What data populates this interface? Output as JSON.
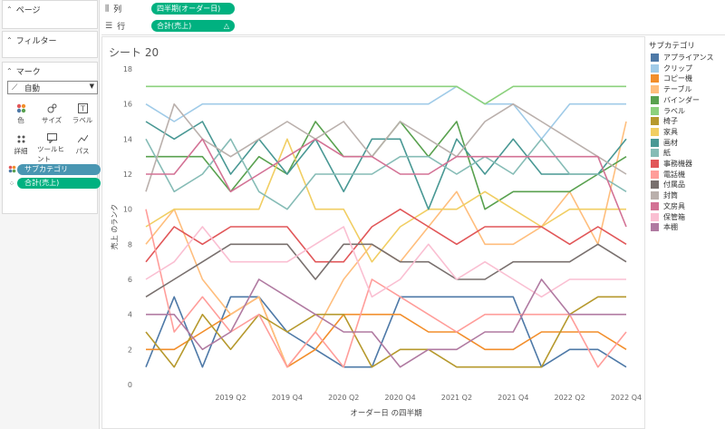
{
  "left_pane": {
    "pages_label": "ページ",
    "filters_label": "フィルター",
    "marks_label": "マーク",
    "mark_type": "自動",
    "buttons": [
      {
        "label": "色",
        "icon": "color-dots-icon"
      },
      {
        "label": "サイズ",
        "icon": "size-icon"
      },
      {
        "label": "ラベル",
        "icon": "label-T-icon"
      },
      {
        "label": "詳細",
        "icon": "detail-icon"
      },
      {
        "label": "ツールヒント",
        "icon": "tooltip-icon"
      },
      {
        "label": "パス",
        "icon": "path-icon"
      }
    ],
    "color_pill": "サブカテゴリ",
    "detail_pill": "合計(売上)"
  },
  "shelves": {
    "columns_label": "列",
    "columns_pill": "四半期(オーダー日)",
    "rows_label": "行",
    "rows_pill": "合計(売上)"
  },
  "sheet": {
    "title": "シート 20"
  },
  "legend": {
    "title": "サブカテゴリ",
    "items": [
      {
        "name": "アプライアンス",
        "color": "#4e79a7"
      },
      {
        "name": "クリップ",
        "color": "#a0cbe8"
      },
      {
        "name": "コピー機",
        "color": "#f28e2b"
      },
      {
        "name": "テーブル",
        "color": "#ffbe7d"
      },
      {
        "name": "バインダー",
        "color": "#59a14f"
      },
      {
        "name": "ラベル",
        "color": "#8cd17d"
      },
      {
        "name": "椅子",
        "color": "#b6992d"
      },
      {
        "name": "家具",
        "color": "#f1ce63"
      },
      {
        "name": "画材",
        "color": "#499894"
      },
      {
        "name": "紙",
        "color": "#86bcb6"
      },
      {
        "name": "事務機器",
        "color": "#e15759"
      },
      {
        "name": "電話機",
        "color": "#ff9d9a"
      },
      {
        "name": "付属品",
        "color": "#79706e"
      },
      {
        "name": "封筒",
        "color": "#bab0ac"
      },
      {
        "name": "文房具",
        "color": "#d37295"
      },
      {
        "name": "保管箱",
        "color": "#fabfd2"
      },
      {
        "name": "本棚",
        "color": "#b07aa1"
      }
    ]
  },
  "chart_data": {
    "type": "line",
    "xlabel": "オーダー日 の四半期",
    "ylabel": "売上 のランク",
    "ylim": [
      0,
      18
    ],
    "yticks": [
      0,
      2,
      4,
      6,
      8,
      10,
      12,
      14,
      16,
      18
    ],
    "x": [
      "2018 Q3",
      "2018 Q4",
      "2019 Q1",
      "2019 Q2",
      "2019 Q3",
      "2019 Q4",
      "2020 Q1",
      "2020 Q2",
      "2020 Q3",
      "2020 Q4",
      "2021 Q1",
      "2021 Q2",
      "2021 Q3",
      "2021 Q4",
      "2022 Q1",
      "2022 Q2",
      "2022 Q3",
      "2022 Q4"
    ],
    "xtick_labels": [
      "",
      "",
      "",
      "2019 Q2",
      "",
      "2019 Q4",
      "",
      "2020 Q2",
      "",
      "2020 Q4",
      "",
      "2021 Q2",
      "",
      "2021 Q4",
      "",
      "2022 Q2",
      "",
      "2022 Q4"
    ],
    "series": [
      {
        "name": "アプライアンス",
        "color": "#4e79a7",
        "values": [
          1,
          5,
          1,
          5,
          5,
          3,
          2,
          1,
          1,
          5,
          5,
          5,
          5,
          5,
          1,
          2,
          2,
          1
        ]
      },
      {
        "name": "クリップ",
        "color": "#a0cbe8",
        "values": [
          16,
          15,
          16,
          16,
          16,
          16,
          16,
          16,
          16,
          16,
          16,
          17,
          16,
          16,
          14,
          16,
          16,
          16
        ]
      },
      {
        "name": "コピー機",
        "color": "#f28e2b",
        "values": [
          2,
          2,
          3,
          4,
          5,
          1,
          2,
          4,
          4,
          4,
          3,
          3,
          2,
          2,
          3,
          3,
          3,
          2
        ]
      },
      {
        "name": "テーブル",
        "color": "#ffbe7d",
        "values": [
          8,
          10,
          6,
          4,
          5,
          1,
          3,
          6,
          8,
          7,
          9,
          11,
          8,
          8,
          9,
          11,
          8,
          15
        ]
      },
      {
        "name": "バインダー",
        "color": "#59a14f",
        "values": [
          13,
          13,
          13,
          11,
          13,
          12,
          15,
          13,
          13,
          15,
          13,
          15,
          10,
          11,
          11,
          11,
          12,
          13
        ]
      },
      {
        "name": "ラベル",
        "color": "#8cd17d",
        "values": [
          17,
          17,
          17,
          17,
          17,
          17,
          17,
          17,
          17,
          17,
          17,
          17,
          16,
          17,
          17,
          17,
          17,
          17
        ]
      },
      {
        "name": "椅子",
        "color": "#b6992d",
        "values": [
          3,
          1,
          4,
          2,
          4,
          3,
          4,
          4,
          1,
          2,
          2,
          1,
          1,
          1,
          1,
          4,
          5,
          5
        ]
      },
      {
        "name": "家具",
        "color": "#f1ce63",
        "values": [
          9,
          10,
          10,
          10,
          10,
          14,
          10,
          10,
          7,
          9,
          10,
          10,
          11,
          10,
          9,
          10,
          10,
          10
        ]
      },
      {
        "name": "画材",
        "color": "#499894",
        "values": [
          15,
          14,
          15,
          12,
          14,
          12,
          14,
          11,
          14,
          14,
          10,
          14,
          12,
          14,
          12,
          12,
          12,
          14
        ]
      },
      {
        "name": "紙",
        "color": "#86bcb6",
        "values": [
          14,
          11,
          12,
          14,
          11,
          10,
          12,
          12,
          12,
          13,
          13,
          12,
          13,
          12,
          14,
          12,
          12,
          11
        ]
      },
      {
        "name": "事務機器",
        "color": "#e15759",
        "values": [
          7,
          9,
          8,
          9,
          9,
          9,
          7,
          7,
          9,
          10,
          9,
          8,
          9,
          9,
          9,
          8,
          9,
          8
        ]
      },
      {
        "name": "電話機",
        "color": "#ff9d9a",
        "values": [
          10,
          3,
          5,
          3,
          4,
          1,
          3,
          1,
          6,
          5,
          4,
          3,
          4,
          4,
          4,
          4,
          1,
          3
        ]
      },
      {
        "name": "付属品",
        "color": "#79706e",
        "values": [
          5,
          6,
          7,
          8,
          8,
          8,
          6,
          8,
          8,
          7,
          7,
          6,
          6,
          7,
          7,
          7,
          8,
          7
        ]
      },
      {
        "name": "封筒",
        "color": "#bab0ac",
        "values": [
          11,
          16,
          14,
          13,
          14,
          15,
          14,
          15,
          13,
          15,
          14,
          13,
          15,
          16,
          15,
          14,
          13,
          12
        ]
      },
      {
        "name": "文房具",
        "color": "#d37295",
        "values": [
          12,
          12,
          14,
          11,
          12,
          13,
          14,
          13,
          13,
          12,
          12,
          13,
          13,
          13,
          13,
          13,
          13,
          9
        ]
      },
      {
        "name": "保管箱",
        "color": "#fabfd2",
        "values": [
          6,
          7,
          9,
          7,
          7,
          7,
          8,
          9,
          5,
          6,
          8,
          6,
          7,
          6,
          5,
          6,
          6,
          6
        ]
      },
      {
        "name": "本棚",
        "color": "#b07aa1",
        "values": [
          4,
          4,
          2,
          3,
          6,
          5,
          4,
          3,
          3,
          1,
          2,
          2,
          3,
          3,
          6,
          4,
          4,
          4
        ]
      }
    ]
  }
}
